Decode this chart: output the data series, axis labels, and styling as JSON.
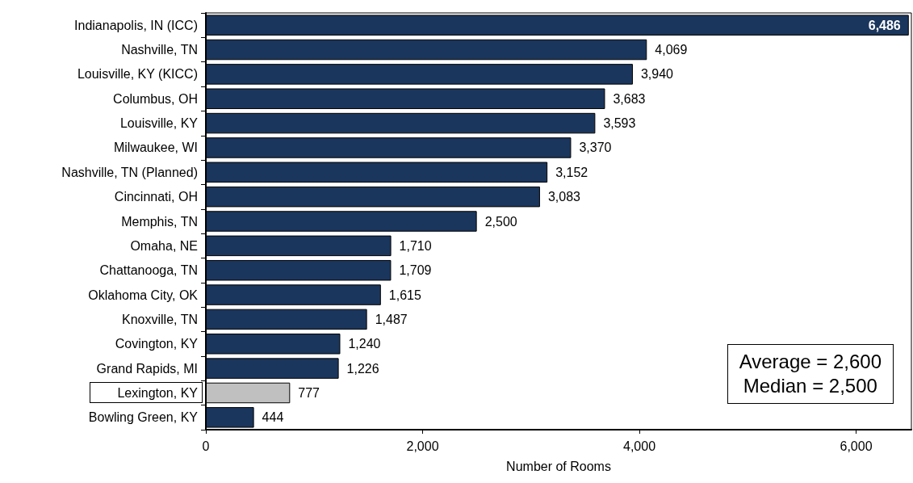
{
  "chart_data": {
    "type": "bar",
    "orientation": "horizontal",
    "xlabel": "Number of Rooms",
    "categories": [
      "Indianapolis, IN (ICC)",
      "Nashville, TN",
      "Louisville, KY (KICC)",
      "Columbus, OH",
      "Louisville, KY",
      "Milwaukee, WI",
      "Nashville, TN (Planned)",
      "Cincinnati, OH",
      "Memphis, TN",
      "Omaha, NE",
      "Chattanooga, TN",
      "Oklahoma City, OK",
      "Knoxville, TN",
      "Covington, KY",
      "Grand Rapids, MI",
      "Lexington, KY",
      "Bowling Green, KY"
    ],
    "values": [
      6486,
      4069,
      3940,
      3683,
      3593,
      3370,
      3152,
      3083,
      2500,
      1710,
      1709,
      1615,
      1487,
      1240,
      1226,
      777,
      444
    ],
    "colors": [
      "#1b365d",
      "#1b365d",
      "#1b365d",
      "#1b365d",
      "#1b365d",
      "#1b365d",
      "#1b365d",
      "#1b365d",
      "#1b365d",
      "#1b365d",
      "#1b365d",
      "#1b365d",
      "#1b365d",
      "#1b365d",
      "#1b365d",
      "#c0c0c0",
      "#1b365d"
    ],
    "xlim": [
      0,
      6510
    ],
    "xticks": [
      0,
      {
        "value": 2000,
        "label": "2,000"
      },
      {
        "value": 4000,
        "label": "4,000"
      },
      {
        "value": 6000,
        "label": "6,000"
      }
    ],
    "value_labels": [
      "6,486",
      "4,069",
      "3,940",
      "3,683",
      "3,593",
      "3,370",
      "3,152",
      "3,083",
      "2,500",
      "1,710",
      "1,709",
      "1,615",
      "1,487",
      "1,240",
      "1,226",
      "777",
      "444"
    ],
    "annotations": [
      "Average = 2,600",
      "Median = 2,500"
    ]
  }
}
